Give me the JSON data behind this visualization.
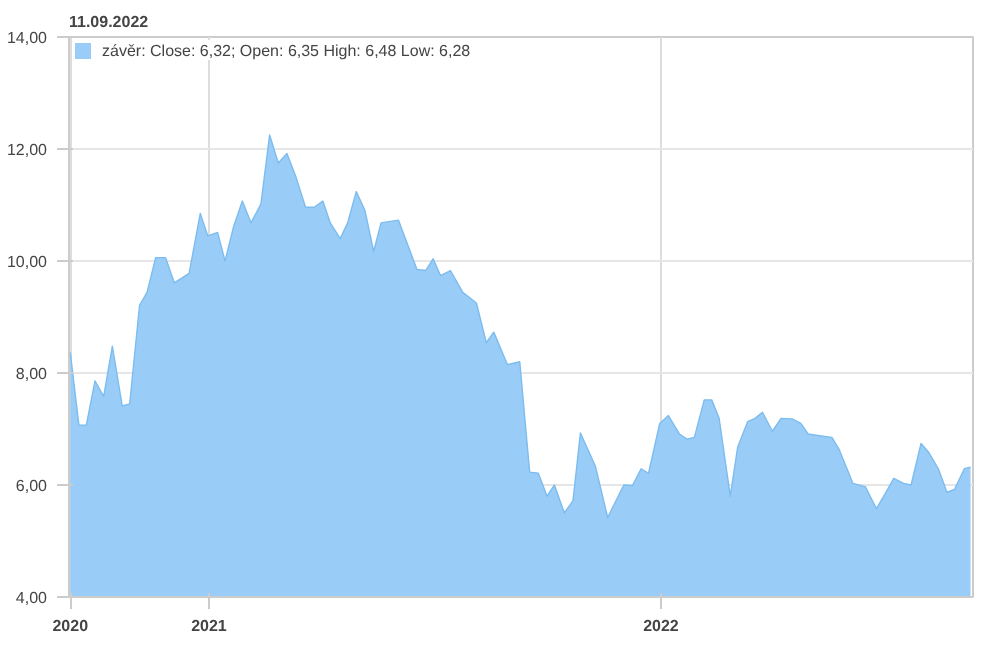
{
  "chart_data": {
    "type": "area",
    "title": "11.09.2022",
    "x": [
      "2020-09-11",
      "2020-09-18",
      "2020-09-24",
      "2020-10-01",
      "2020-10-08",
      "2020-10-15",
      "2020-10-23",
      "2020-10-29",
      "2020-11-06",
      "2020-11-12",
      "2020-11-19",
      "2020-11-27",
      "2020-12-04",
      "2020-12-16",
      "2020-12-25",
      "2020-12-31",
      "2021-01-08",
      "2021-01-14",
      "2021-01-21",
      "2021-01-28",
      "2021-02-04",
      "2021-02-12",
      "2021-02-19",
      "2021-02-26",
      "2021-03-05",
      "2021-03-12",
      "2021-03-20",
      "2021-03-27",
      "2021-04-03",
      "2021-04-09",
      "2021-04-17",
      "2021-04-23",
      "2021-04-30",
      "2021-05-07",
      "2021-05-14",
      "2021-05-20",
      "2021-06-03",
      "2021-06-18",
      "2021-06-25",
      "2021-07-01",
      "2021-07-07",
      "2021-07-15",
      "2021-07-25",
      "2021-08-05",
      "2021-08-13",
      "2021-08-19",
      "2021-08-30",
      "2021-09-09",
      "2021-09-17",
      "2021-09-24",
      "2021-10-01",
      "2021-10-07",
      "2021-10-15",
      "2021-10-22",
      "2021-10-28",
      "2021-11-09",
      "2021-11-19",
      "2021-12-02",
      "2021-12-09",
      "2021-12-16",
      "2021-12-22",
      "2021-12-31",
      "2022-01-07",
      "2022-01-16",
      "2022-01-22",
      "2022-01-28",
      "2022-02-05",
      "2022-02-11",
      "2022-02-17",
      "2022-02-26",
      "2022-03-04",
      "2022-03-12",
      "2022-03-18",
      "2022-03-24",
      "2022-04-01",
      "2022-04-08",
      "2022-04-17",
      "2022-04-24",
      "2022-04-30",
      "2022-05-09",
      "2022-05-19",
      "2022-05-25",
      "2022-06-05",
      "2022-06-15",
      "2022-06-24",
      "2022-07-01",
      "2022-07-08",
      "2022-07-16",
      "2022-07-22",
      "2022-07-30",
      "2022-08-05",
      "2022-08-13",
      "2022-08-20",
      "2022-08-26",
      "2022-09-03",
      "2022-09-08"
    ],
    "series": [
      {
        "name": "závěr: Close: 6,32; Open: 6,35 High: 6,48 Low: 6,28",
        "color": "#99cdf7",
        "values": [
          8.37,
          7.07,
          7.07,
          7.86,
          7.58,
          8.48,
          7.41,
          7.45,
          9.21,
          9.44,
          10.06,
          10.06,
          9.61,
          9.78,
          10.85,
          10.45,
          10.51,
          10.0,
          10.62,
          11.07,
          10.68,
          11.02,
          12.25,
          11.75,
          11.92,
          11.52,
          10.96,
          10.96,
          11.07,
          10.68,
          10.4,
          10.68,
          11.24,
          10.9,
          10.17,
          10.68,
          10.73,
          9.85,
          9.83,
          10.04,
          9.74,
          9.83,
          9.44,
          9.25,
          8.54,
          8.73,
          8.15,
          8.2,
          6.23,
          6.21,
          5.8,
          6.0,
          5.5,
          5.72,
          6.93,
          6.34,
          5.42,
          6.0,
          5.99,
          6.29,
          6.21,
          7.1,
          7.24,
          6.91,
          6.82,
          6.85,
          7.52,
          7.52,
          7.19,
          5.8,
          6.68,
          7.13,
          7.19,
          7.3,
          6.96,
          7.19,
          7.18,
          7.1,
          6.91,
          6.88,
          6.85,
          6.63,
          6.03,
          5.97,
          5.58,
          5.84,
          6.12,
          6.03,
          6.0,
          6.74,
          6.59,
          6.29,
          5.87,
          5.92,
          6.29,
          6.32
        ]
      }
    ],
    "xlim": [
      "2020-09-10",
      "2022-09-10"
    ],
    "xticks": [
      {
        "value": "2020-09-11",
        "label": "2020"
      },
      {
        "value": "2021-01-01",
        "label": "2021"
      },
      {
        "value": "2022-01-01",
        "label": "2022"
      }
    ],
    "ylim": [
      4,
      14
    ],
    "yticks": [
      {
        "value": 4,
        "label": "4,00"
      },
      {
        "value": 6,
        "label": "6,00"
      },
      {
        "value": 8,
        "label": "8,00"
      },
      {
        "value": 10,
        "label": "10,00"
      },
      {
        "value": 12,
        "label": "12,00"
      },
      {
        "value": 14,
        "label": "14,00"
      }
    ],
    "grid": true,
    "legend": "top left"
  }
}
